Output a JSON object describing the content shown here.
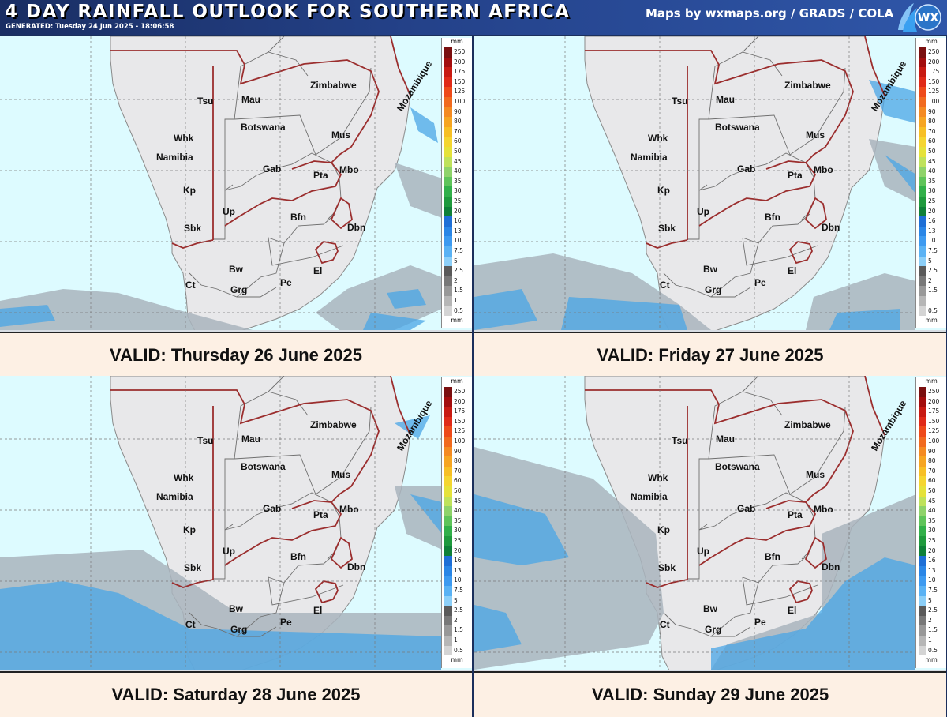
{
  "header": {
    "title": "4 DAY RAINFALL OUTLOOK FOR SOUTHERN AFRICA",
    "generated": "GENERATED: Tuesday 24 Jun 2025 - 18:06:58",
    "credits": "Maps by wxmaps.org / GRADS / COLA",
    "logo_text": "WX"
  },
  "colors": {
    "land": "#e8e8ea",
    "ocean": "#ddfbff",
    "border": "#9b2e2e",
    "rain_light": "#8fb7d2",
    "rain_mid": "#4aa6e6"
  },
  "legend": {
    "unit": "mm",
    "levels": [
      "250",
      "200",
      "175",
      "150",
      "125",
      "100",
      "90",
      "80",
      "70",
      "60",
      "50",
      "45",
      "40",
      "35",
      "30",
      "25",
      "20",
      "16",
      "13",
      "10",
      "7.5",
      "5",
      "2.5",
      "2",
      "1.5",
      "1",
      "0.5"
    ],
    "colors": [
      "#7a0f0f",
      "#a30d0d",
      "#c81a12",
      "#e02a18",
      "#ee4a1a",
      "#f16a1f",
      "#f48a22",
      "#f6a522",
      "#f7bf25",
      "#f5d530",
      "#e5e23a",
      "#bfe25b",
      "#8fd36a",
      "#5fc45a",
      "#32b04a",
      "#1f9a3d",
      "#0f8038",
      "#1e6fd6",
      "#2a86e6",
      "#3d9af0",
      "#5ab2f4",
      "#8ccff8",
      "#5a5a5a",
      "#787878",
      "#989898",
      "#b6b6b6",
      "#d4d4d4"
    ]
  },
  "labels": [
    "Tsu",
    "Mau",
    "Zimbabwe",
    "Mozambique",
    "Whk",
    "Botswana",
    "Mus",
    "Namibia",
    "Gab",
    "Mbo",
    "Pta",
    "Kp",
    "Up",
    "Bfn",
    "Sbk",
    "Dbn",
    "Bw",
    "El",
    "Ct",
    "Grg",
    "Pe"
  ],
  "panels": [
    {
      "valid": "VALID: Thursday 26 June 2025"
    },
    {
      "valid": "VALID: Friday 27 June 2025"
    },
    {
      "valid": "VALID: Saturday 28 June 2025"
    },
    {
      "valid": "VALID: Sunday 29 June 2025"
    }
  ]
}
